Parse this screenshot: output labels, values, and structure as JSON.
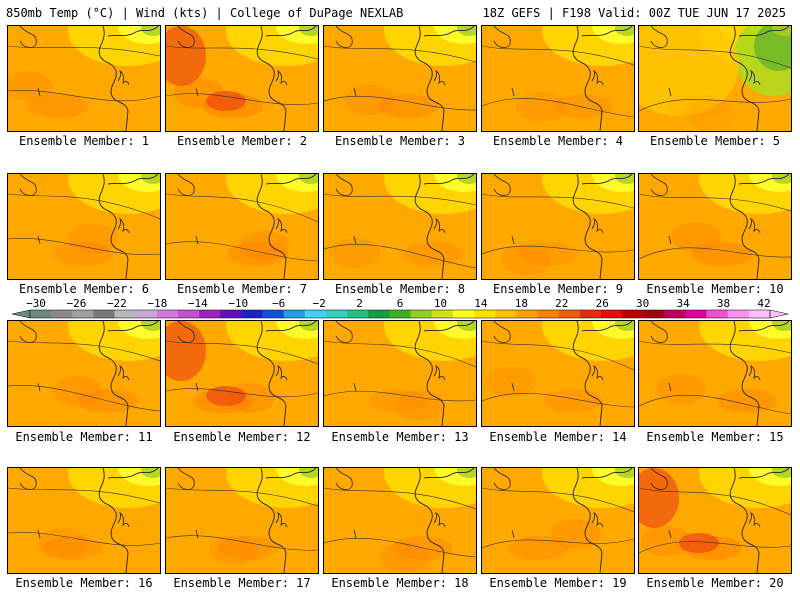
{
  "header": {
    "left": "850mb Temp (°C) | Wind (kts) | College of DuPage NEXLAB",
    "right": "18Z GEFS | F198 Valid: 00Z TUE JUN 17 2025"
  },
  "panels": [
    {
      "label": "Ensemble Member: 1",
      "warm": 0.55
    },
    {
      "label": "Ensemble Member: 2",
      "warm": 0.75
    },
    {
      "label": "Ensemble Member: 3",
      "warm": 0.55
    },
    {
      "label": "Ensemble Member: 4",
      "warm": 0.45
    },
    {
      "label": "Ensemble Member: 5",
      "warm": 0.15
    },
    {
      "label": "Ensemble Member: 6",
      "warm": 0.45
    },
    {
      "label": "Ensemble Member: 7",
      "warm": 0.55
    },
    {
      "label": "Ensemble Member: 8",
      "warm": 0.45
    },
    {
      "label": "Ensemble Member: 9",
      "warm": 0.4
    },
    {
      "label": "Ensemble Member: 10",
      "warm": 0.6
    },
    {
      "label": "Ensemble Member: 11",
      "warm": 0.55
    },
    {
      "label": "Ensemble Member: 12",
      "warm": 0.7
    },
    {
      "label": "Ensemble Member: 13",
      "warm": 0.4
    },
    {
      "label": "Ensemble Member: 14",
      "warm": 0.45
    },
    {
      "label": "Ensemble Member: 15",
      "warm": 0.55
    },
    {
      "label": "Ensemble Member: 16",
      "warm": 0.45
    },
    {
      "label": "Ensemble Member: 17",
      "warm": 0.45
    },
    {
      "label": "Ensemble Member: 18",
      "warm": 0.5
    },
    {
      "label": "Ensemble Member: 19",
      "warm": 0.5
    },
    {
      "label": "Ensemble Member: 20",
      "warm": 0.7
    }
  ],
  "colorbar": {
    "labels": [
      "−30",
      "−26",
      "−22",
      "−18",
      "−14",
      "−10",
      "−6",
      "−2",
      "2",
      "6",
      "10",
      "14",
      "18",
      "22",
      "26",
      "30",
      "34",
      "38",
      "42"
    ],
    "colors": [
      "#6d8a82",
      "#8a8a8a",
      "#a0a0a0",
      "#7a7a7a",
      "#b8b8b8",
      "#c9a8d6",
      "#d478e0",
      "#c450d0",
      "#a020c0",
      "#6010c0",
      "#2020c8",
      "#1050e0",
      "#20a0e0",
      "#40d0f0",
      "#30d0c0",
      "#20c080",
      "#10a040",
      "#40b020",
      "#90d020",
      "#d0e020",
      "#ffff20",
      "#ffe000",
      "#ffc000",
      "#ffa000",
      "#ff8000",
      "#f06000",
      "#e03010",
      "#e01010",
      "#c00000",
      "#a00010",
      "#c00060",
      "#e000a0",
      "#f050d0",
      "#f890f0",
      "#ffc0ff"
    ]
  }
}
